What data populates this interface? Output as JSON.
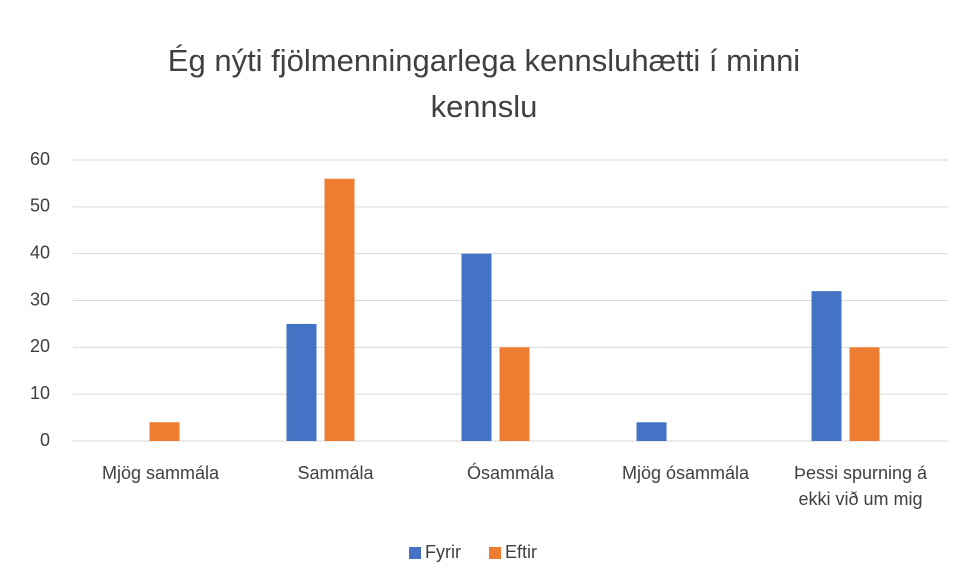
{
  "chart_data": {
    "type": "bar",
    "title": "Ég nýti fjölmenningarlega kennsluhætti í minni kennslu",
    "categories": [
      "Mjög sammála",
      "Sammála",
      "Ósammála",
      "Mjög ósammála",
      "Þessi spurning á ekki við um mig"
    ],
    "series": [
      {
        "name": "Fyrir",
        "color": "#4472c4",
        "values": [
          0,
          25,
          40,
          4,
          32
        ]
      },
      {
        "name": "Eftir",
        "color": "#ed7d31",
        "values": [
          4,
          56,
          20,
          0,
          20
        ]
      }
    ],
    "ylim": [
      0,
      60
    ],
    "yticks": [
      0,
      10,
      20,
      30,
      40,
      50,
      60
    ],
    "grid": true,
    "legend": "bottom"
  }
}
